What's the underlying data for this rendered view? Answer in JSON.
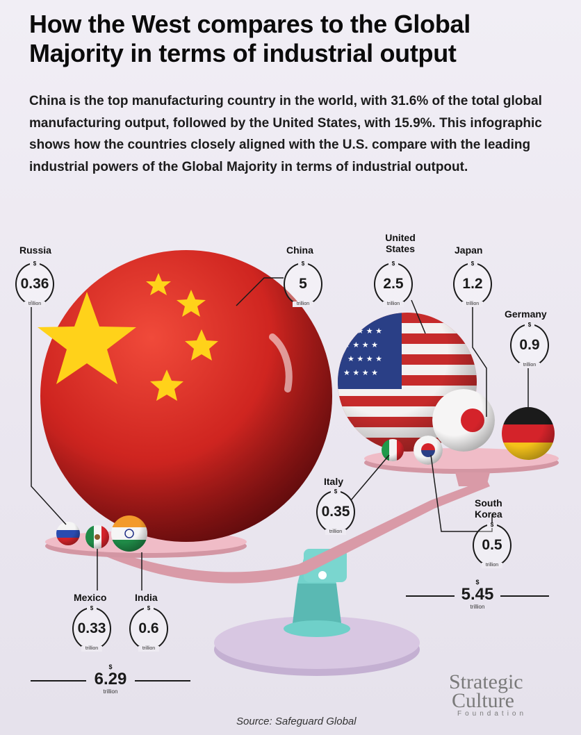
{
  "title": "How the West compares to the Global Majority in terms of industrial output",
  "subtitle": "China is the top manufacturing country in the world, with 31.6% of the total global manufacturing output, followed by the United States, with 15.9%. This infographic shows how the countries closely aligned with the U.S. compare with the leading industrial powers of the Global Majority in terms of industrial outpout.",
  "source": "Source: Safeguard Global",
  "logo": {
    "line1": "Strategic",
    "line2": "Culture",
    "line3": "Foundation"
  },
  "currency": "$",
  "unit": "trillion",
  "chart_data": {
    "type": "bar",
    "title": "How the West compares to the Global Majority in terms of industrial output",
    "unit": "trillion $",
    "groups": [
      {
        "name": "Global Majority",
        "total": "6.29",
        "countries": [
          {
            "name": "Russia",
            "value": "0.36"
          },
          {
            "name": "China",
            "value": "5"
          },
          {
            "name": "Mexico",
            "value": "0.33"
          },
          {
            "name": "India",
            "value": "0.6"
          }
        ]
      },
      {
        "name": "West",
        "total": "5.45",
        "countries": [
          {
            "name": "United States",
            "value": "2.5"
          },
          {
            "name": "Japan",
            "value": "1.2"
          },
          {
            "name": "Germany",
            "value": "0.9"
          },
          {
            "name": "Italy",
            "value": "0.35"
          },
          {
            "name": "South Korea",
            "value": "0.5"
          }
        ]
      }
    ]
  },
  "labels": {
    "russia": "Russia",
    "china": "China",
    "us": "United\nStates",
    "japan": "Japan",
    "germany": "Germany",
    "italy": "Italy",
    "skorea": "South\nKorea",
    "mexico": "Mexico",
    "india": "India"
  },
  "colors": {
    "china_red": "#d42a22",
    "china_star": "#ffd21a",
    "plate": "#e9b4bf",
    "beam": "#d89aa6",
    "stand": "#67c7c1",
    "base": "#d5c4df"
  }
}
